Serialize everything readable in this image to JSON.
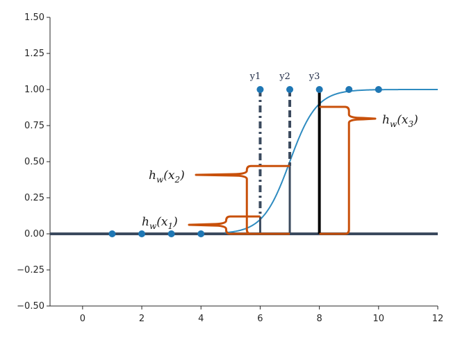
{
  "chart_data": {
    "type": "scatter",
    "xlim": [
      -1.1,
      12
    ],
    "ylim": [
      -0.5,
      1.5
    ],
    "x_ticks": [
      0,
      2,
      4,
      6,
      8,
      10,
      12
    ],
    "y_ticks": [
      -0.5,
      -0.25,
      0.0,
      0.25,
      0.5,
      0.75,
      1.0,
      1.25,
      1.5
    ],
    "y_tick_labels": [
      "−0.50",
      "−0.25",
      "0.00",
      "0.25",
      "0.50",
      "0.75",
      "1.00",
      "1.25",
      "1.50"
    ],
    "x_tick_labels": [
      "0",
      "2",
      "4",
      "6",
      "8",
      "10",
      "12"
    ],
    "points": {
      "x": [
        1,
        2,
        3,
        4,
        6,
        7,
        8,
        9,
        10
      ],
      "y": [
        0,
        0,
        0,
        0,
        1,
        1,
        1,
        1,
        1
      ]
    },
    "sigmoid": {
      "center": 7.0,
      "slope": 2.2,
      "x_start": 4.8,
      "x_end": 12
    },
    "baseline_y": 0,
    "grid": false,
    "residual_lines": [
      {
        "label": "y1",
        "x": 6,
        "y_from": 0.12,
        "y_to": 1.0,
        "style": "dashdot"
      },
      {
        "label": "y2",
        "x": 7,
        "y_from": 0.47,
        "y_to": 1.0,
        "style": "mixed"
      },
      {
        "label": "y3",
        "x": 8,
        "y_from": 0.0,
        "y_to": 1.0,
        "style": "solid"
      }
    ],
    "hypothesis_annotations": [
      {
        "text_main": "h",
        "text_w": "w",
        "text_arg": "x",
        "text_idx": "1",
        "x": 6,
        "y": 0.12,
        "bracket_x": [
          4.8,
          6
        ],
        "bracket_y": [
          0.0,
          0.12
        ]
      },
      {
        "text_main": "h",
        "text_w": "w",
        "text_arg": "x",
        "text_idx": "2",
        "x": 7,
        "y": 0.47,
        "bracket_x": [
          5.6,
          7
        ],
        "bracket_y": [
          0.0,
          0.47
        ]
      },
      {
        "text_main": "h",
        "text_w": "w",
        "text_arg": "x",
        "text_idx": "3",
        "x": 8,
        "y": 0.88,
        "bracket_x": [
          8.9,
          8
        ],
        "bracket_y": [
          0.0,
          0.88
        ]
      }
    ],
    "colors": {
      "points": "#1f77b4",
      "sigmoid": "#2e8bc0",
      "baseline": "#3b4a5e",
      "dashed": "#3b4a5e",
      "solid_y3": "#000000",
      "annotation": "#c8500a",
      "axes": "#262626"
    }
  }
}
